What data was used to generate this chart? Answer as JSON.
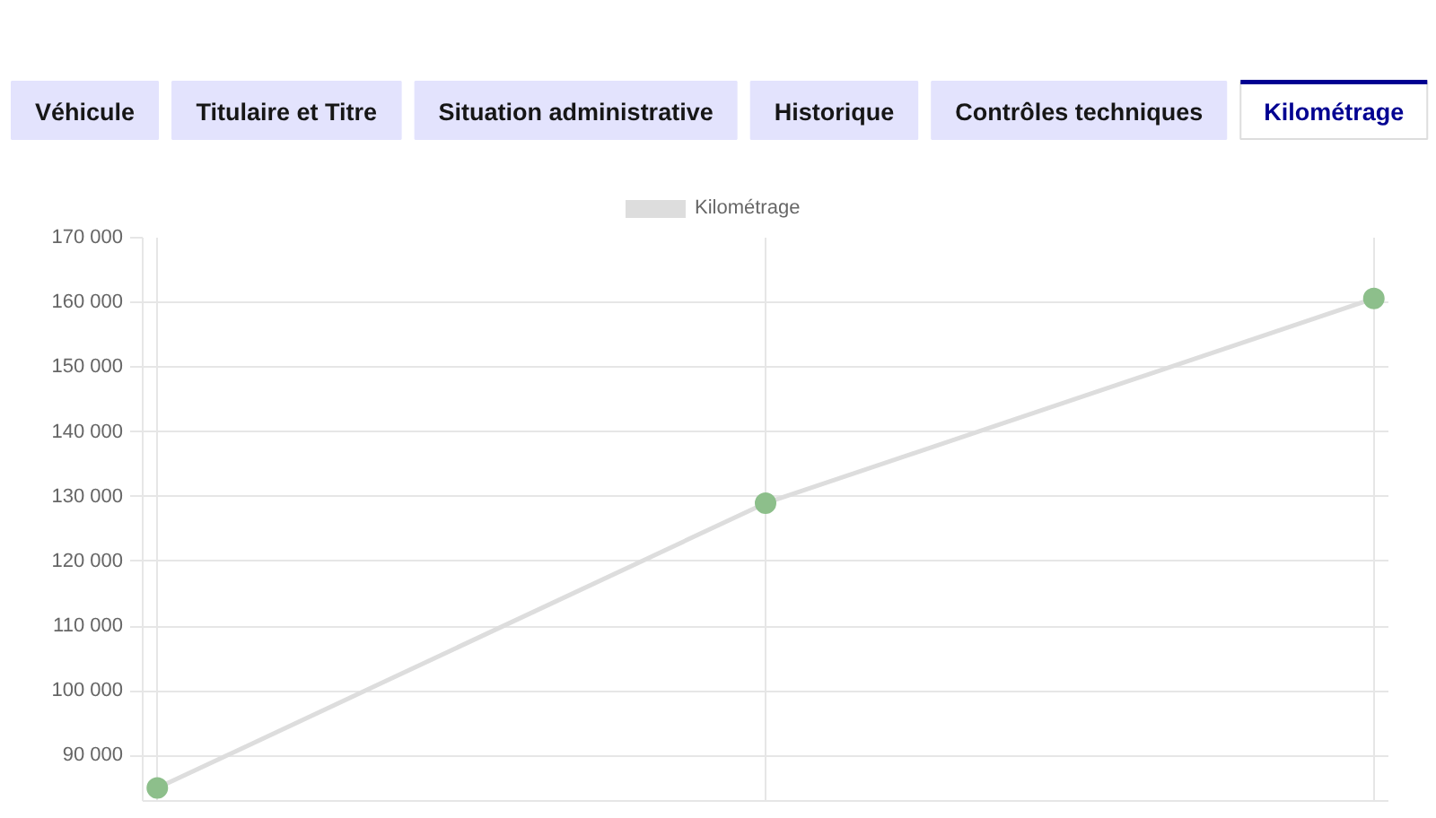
{
  "chart_data": {
    "type": "line",
    "annotations": [
      "Véhicule",
      "Titulaire et Titre",
      "Situation administrative",
      "Historique",
      "Contrôles techniques",
      "Kilométrage"
    ],
    "categories": [
      null,
      null,
      null
    ],
    "series": [
      {
        "name": "Kilométrage",
        "color": "#dddddd",
        "colors": [
          "#8dbf8b",
          "#8dbf8b",
          "#8dbf8b"
        ],
        "values": [
          85000,
          129000,
          160600
        ]
      }
    ],
    "ylim": [
      83000,
      170000
    ],
    "yticks": [
      {
        "value": 90000,
        "label": "90 000"
      },
      {
        "value": 100000,
        "label": "100 000"
      },
      {
        "value": 110000,
        "label": "110 000"
      },
      {
        "value": 120000,
        "label": "120 000"
      },
      {
        "value": 130000,
        "label": "130 000"
      },
      {
        "value": 140000,
        "label": "140 000"
      },
      {
        "value": 150000,
        "label": "150 000"
      },
      {
        "value": 160000,
        "label": "160 000"
      },
      {
        "value": 170000,
        "label": "170 000"
      }
    ],
    "grid": true,
    "legend": "top",
    "marker": "circle",
    "line_style": "solid",
    "tick_labels": "y"
  }
}
